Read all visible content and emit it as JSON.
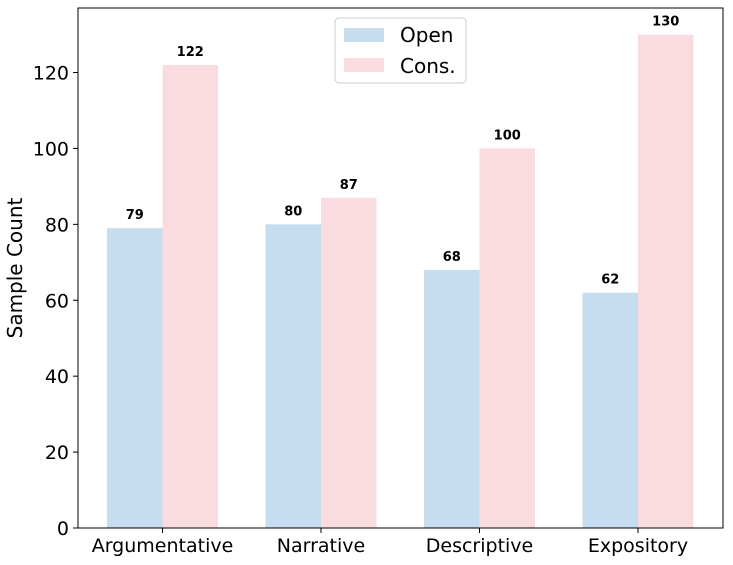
{
  "chart_data": {
    "type": "bar",
    "categories": [
      "Argumentative",
      "Narrative",
      "Descriptive",
      "Expository"
    ],
    "series": [
      {
        "name": "Open",
        "values": [
          79,
          80,
          68,
          62
        ],
        "color": "#c6ddef"
      },
      {
        "name": "Cons.",
        "values": [
          122,
          87,
          100,
          130
        ],
        "color": "#fadbe0"
      }
    ],
    "ylabel": "Sample Count",
    "ylim": [
      0,
      137
    ],
    "yticks": [
      0,
      20,
      40,
      60,
      80,
      100,
      120
    ],
    "grid": false,
    "legend": "top-center",
    "data_labels": true
  }
}
